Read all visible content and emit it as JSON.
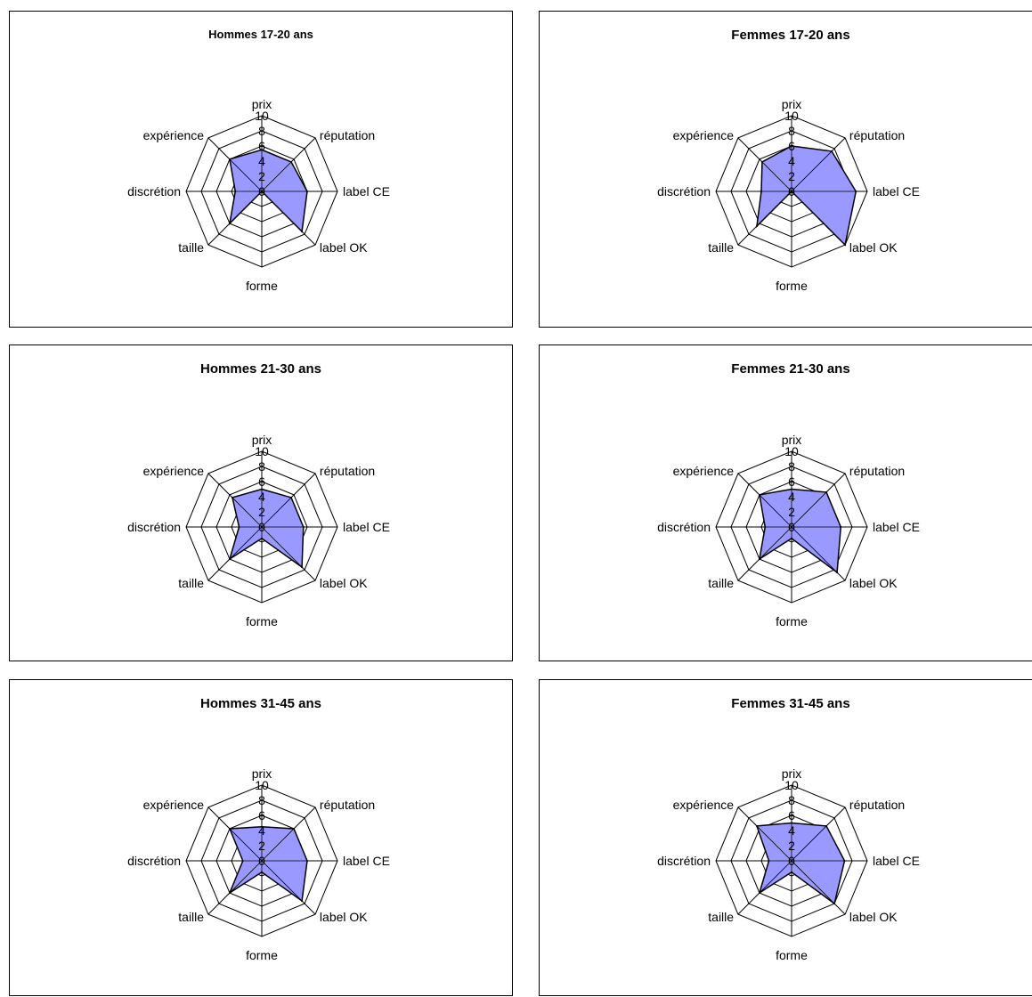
{
  "axes": [
    "prix",
    "réputation",
    "label CE",
    "label OK",
    "forme",
    "taille",
    "discrétion",
    "expérience"
  ],
  "scale": {
    "min": 0,
    "max": 10,
    "ticks": [
      0,
      2,
      4,
      6,
      8,
      10
    ]
  },
  "colors": {
    "fill": "#9999ff",
    "stroke": "#000000",
    "grid": "#000000",
    "background": "#ffffff"
  },
  "chart_data": [
    {
      "type": "radar",
      "title": "Hommes 17-20 ans",
      "categories": [
        "prix",
        "réputation",
        "label CE",
        "label OK",
        "forme",
        "taille",
        "discrétion",
        "expérience"
      ],
      "values": [
        5.5,
        5.5,
        6.0,
        7.5,
        0.0,
        6.0,
        3.5,
        6.0
      ],
      "rlim": [
        0,
        10
      ]
    },
    {
      "type": "radar",
      "title": "Femmes 17-20 ans",
      "categories": [
        "prix",
        "réputation",
        "label CE",
        "label OK",
        "forme",
        "taille",
        "discrétion",
        "expérience"
      ],
      "values": [
        6.0,
        7.5,
        8.5,
        10.0,
        0.0,
        6.5,
        4.0,
        5.5
      ],
      "rlim": [
        0,
        10
      ]
    },
    {
      "type": "radar",
      "title": "Hommes 21-30 ans",
      "categories": [
        "prix",
        "réputation",
        "label CE",
        "label OK",
        "forme",
        "taille",
        "discrétion",
        "expérience"
      ],
      "values": [
        5.0,
        5.5,
        5.5,
        7.5,
        1.5,
        6.0,
        3.0,
        5.5
      ],
      "rlim": [
        0,
        10
      ]
    },
    {
      "type": "radar",
      "title": "Femmes 21-30 ans",
      "categories": [
        "prix",
        "réputation",
        "label CE",
        "label OK",
        "forme",
        "taille",
        "discrétion",
        "expérience"
      ],
      "values": [
        5.0,
        6.5,
        6.5,
        8.5,
        1.5,
        6.0,
        3.5,
        6.0
      ],
      "rlim": [
        0,
        10
      ]
    },
    {
      "type": "radar",
      "title": "Hommes 31-45 ans",
      "categories": [
        "prix",
        "réputation",
        "label CE",
        "label OK",
        "forme",
        "taille",
        "discrétion",
        "expérience"
      ],
      "values": [
        4.5,
        6.0,
        6.0,
        7.5,
        1.5,
        6.0,
        2.5,
        6.0
      ],
      "rlim": [
        0,
        10
      ]
    },
    {
      "type": "radar",
      "title": "Femmes 31-45 ans",
      "categories": [
        "prix",
        "réputation",
        "label CE",
        "label OK",
        "forme",
        "taille",
        "discrétion",
        "expérience"
      ],
      "values": [
        5.0,
        6.5,
        7.0,
        8.0,
        1.5,
        6.0,
        3.0,
        6.5
      ],
      "rlim": [
        0,
        10
      ]
    }
  ]
}
